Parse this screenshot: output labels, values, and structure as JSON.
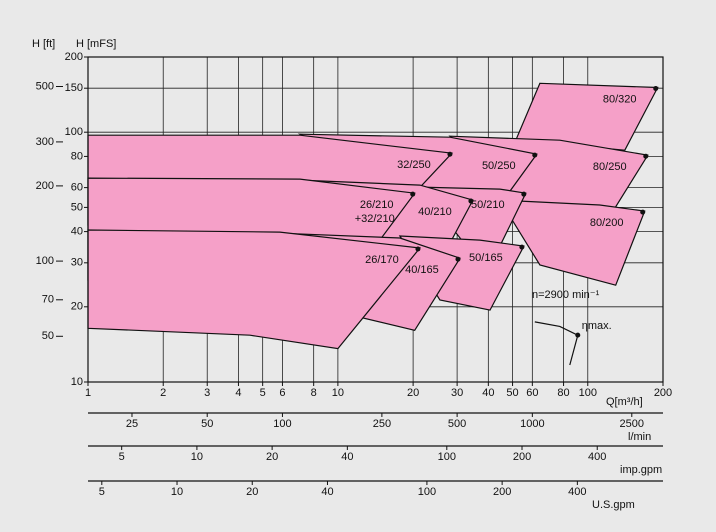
{
  "chart_data": {
    "type": "region",
    "x_label": "Q[m³/h]",
    "y_label": "H [mFS]",
    "y2_label": "H [ft]",
    "xscale": "log",
    "yscale": "log",
    "xlim": [
      1,
      200
    ],
    "ylim": [
      10,
      200
    ],
    "xticks": [
      1,
      2,
      3,
      4,
      5,
      6,
      8,
      10,
      20,
      30,
      40,
      50,
      60,
      80,
      100,
      200
    ],
    "yticks": [
      10,
      20,
      30,
      40,
      50,
      60,
      80,
      100,
      150,
      200
    ],
    "y2lim": [
      32.81,
      656.17
    ],
    "y2ticks": [
      50,
      70,
      100,
      200,
      300,
      500
    ],
    "grid": true,
    "color": "#f5a0c8",
    "series": [
      {
        "name": "80/320",
        "x": [
          64.3,
          190.5,
          140.6,
          51.5
        ],
        "y": [
          157,
          151,
          84.7,
          92.9
        ]
      },
      {
        "name": "80/250",
        "x": [
          28.1,
          77.3,
          173.8,
          124.7,
          53.5
        ],
        "y": [
          96.4,
          92.9,
          80.9,
          47.4,
          52.0
        ]
      },
      {
        "name": "80/200",
        "x": [
          44.5,
          111.7,
          169,
          129.4,
          64.3
        ],
        "y": [
          53.5,
          51.1,
          48.3,
          24.4,
          29.4
        ]
      },
      {
        "name": "50/250",
        "x": [
          7.05,
          28.1,
          62.5,
          44.5,
          21.3
        ],
        "y": [
          98.2,
          95.5,
          81.7,
          51.1,
          51.1
        ]
      },
      {
        "name": "32/250",
        "x": [
          1,
          7.05,
          28.6,
          15.4,
          1
        ],
        "y": [
          97.3,
          97.3,
          82.4,
          42.5,
          42.5
        ]
      },
      {
        "name": "50/210",
        "x": [
          21.3,
          44.5,
          56.5,
          43.7,
          33.7
        ],
        "y": [
          60.3,
          59.2,
          57.0,
          33.7,
          33.7
        ]
      },
      {
        "name": "40/210",
        "x": [
          7.05,
          21.3,
          34.7,
          25.6,
          15.4
        ],
        "y": [
          64.3,
          61.4,
          53.5,
          30.2,
          37.0
        ]
      },
      {
        "name": "26/210",
        "subname": "+32/210",
        "x": [
          1,
          7.05,
          20.3,
          11.2,
          1
        ],
        "y": [
          65.5,
          64.9,
          57.0,
          25.6,
          25.6
        ]
      },
      {
        "name": "50/165",
        "x": [
          17.7,
          37.0,
          55.5,
          40.6,
          25.6
        ],
        "y": [
          38.4,
          37.0,
          35.0,
          19.4,
          21.3
        ]
      },
      {
        "name": "40/165",
        "x": [
          5.86,
          17.7,
          30.8,
          20.3,
          9.29
        ],
        "y": [
          39.4,
          37.7,
          31.3,
          16.1,
          19.4
        ]
      },
      {
        "name": "26/170",
        "x": [
          1,
          5.86,
          21.3,
          10,
          4.45,
          1
        ],
        "y": [
          40.6,
          39.8,
          34.4,
          13.6,
          15.4,
          16.4
        ]
      }
    ],
    "annotations": {
      "speed": "n=2900  min⁻¹",
      "eta_label": "ηmax.",
      "eta_line": {
        "x": [
          61.4,
          77.3,
          91.2,
          84.7
        ],
        "y": [
          17.4,
          16.7,
          15.4,
          11.7
        ]
      }
    },
    "extra_axes": [
      {
        "label": "l/min",
        "lim": [
          16.67,
          3333
        ],
        "ticks": [
          25,
          50,
          100,
          250,
          500,
          1000,
          2500
        ]
      },
      {
        "label": "imp.gpm",
        "lim": [
          3.666,
          733.2
        ],
        "ticks": [
          5,
          10,
          20,
          40,
          100,
          200,
          400
        ]
      },
      {
        "label": "U.S.gpm",
        "lim": [
          4.403,
          880.6
        ],
        "ticks": [
          5,
          10,
          20,
          40,
          100,
          200,
          400
        ]
      }
    ]
  }
}
